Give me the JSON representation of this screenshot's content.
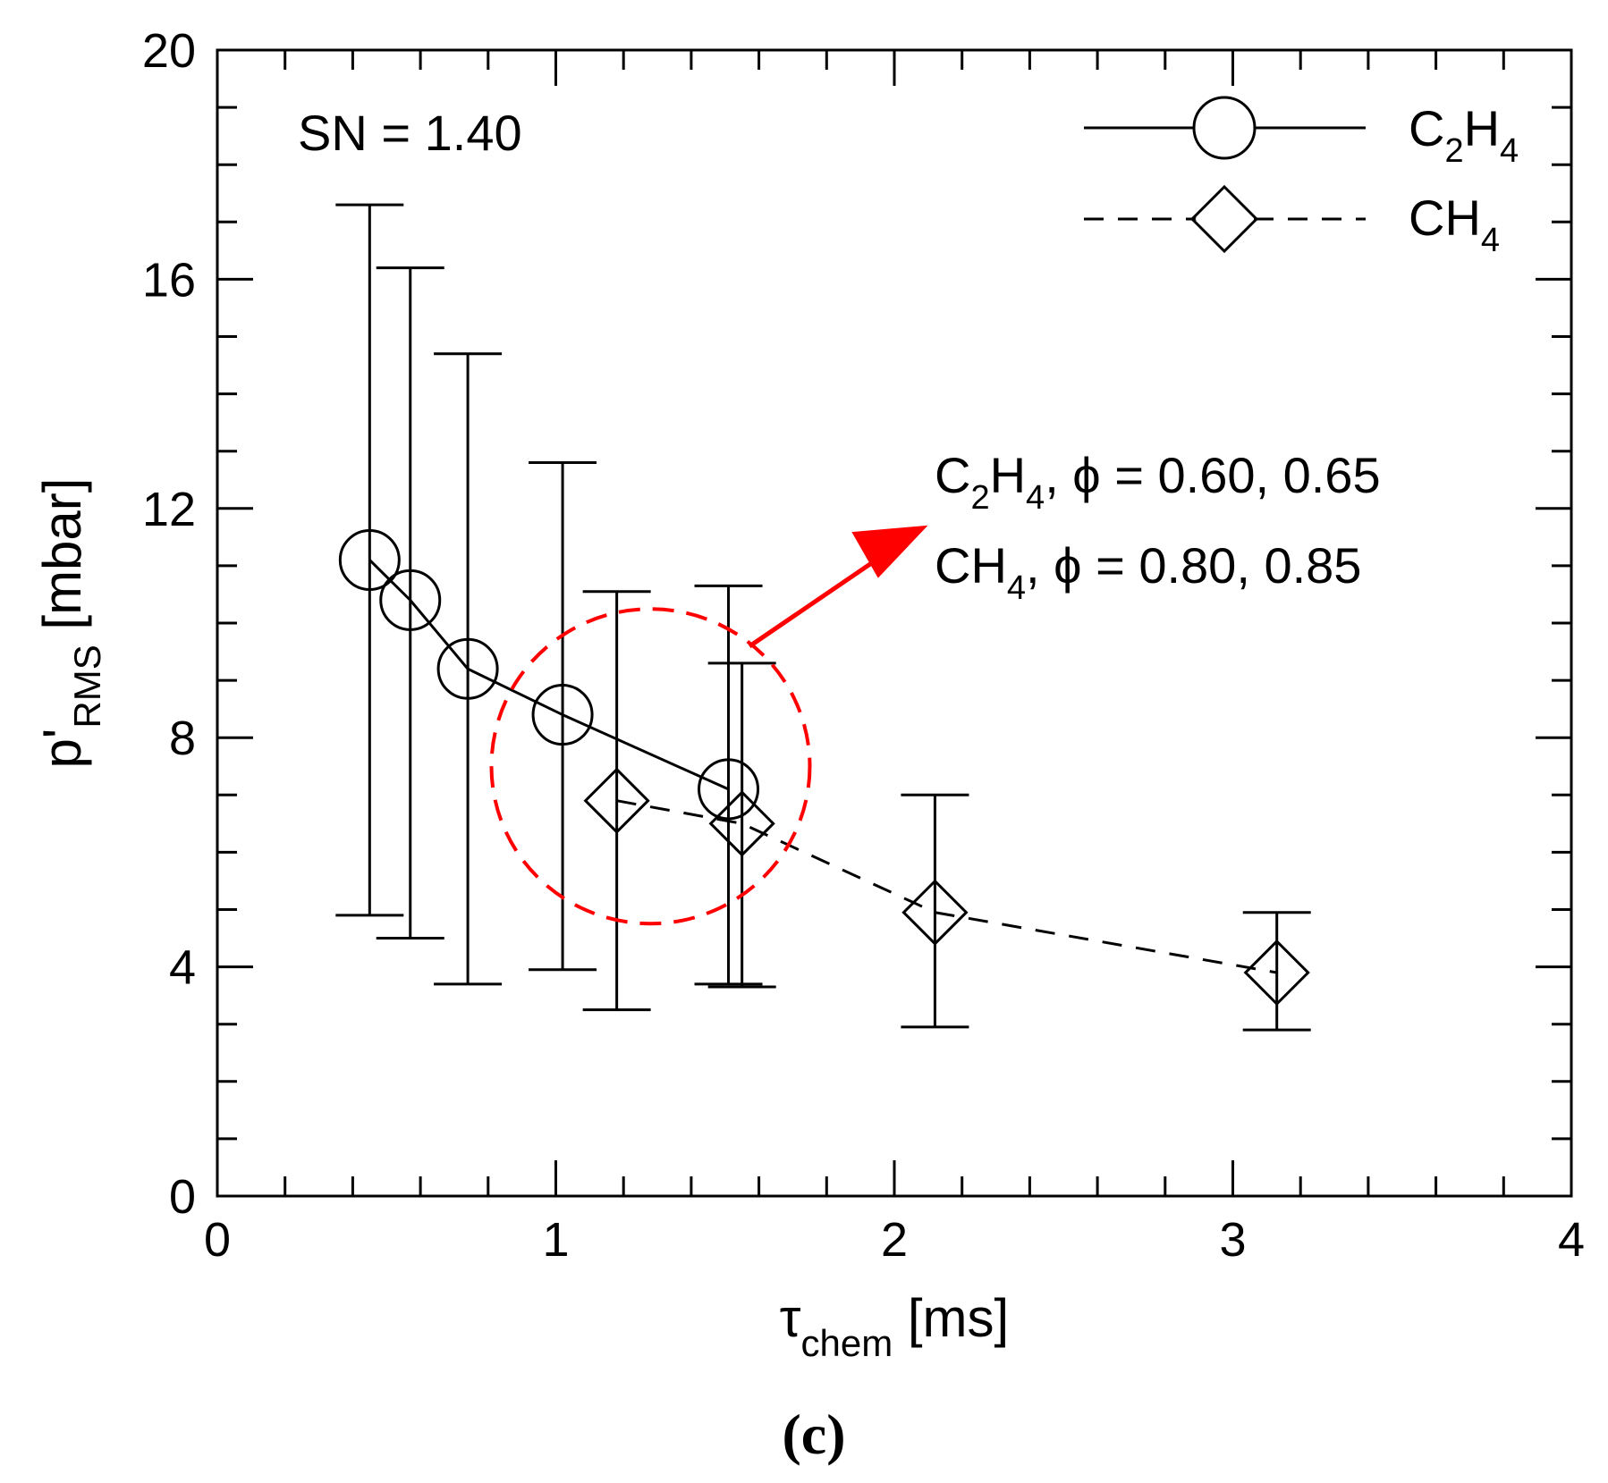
{
  "chart_data": {
    "type": "scatter",
    "panel_label": "(c)",
    "annotation": "SN = 1.40",
    "xlabel": {
      "main": "τ",
      "sub": "chem",
      "unit": " [ms]"
    },
    "ylabel": {
      "main": "p'",
      "sub": "RMS",
      "unit": " [mbar]"
    },
    "xlim": [
      0,
      4
    ],
    "ylim": [
      0,
      20
    ],
    "xticks": [
      0,
      1,
      2,
      3,
      4
    ],
    "yticks": [
      0,
      4,
      8,
      12,
      16,
      20
    ],
    "series": [
      {
        "name": "C2H4",
        "label_parts": [
          "C",
          "2",
          "H",
          "4"
        ],
        "marker": "circle",
        "line": "solid",
        "points": [
          {
            "x": 0.45,
            "y": 11.1,
            "ylow": 4.9,
            "yhigh": 17.3
          },
          {
            "x": 0.57,
            "y": 10.4,
            "ylow": 4.5,
            "yhigh": 16.2
          },
          {
            "x": 0.74,
            "y": 9.2,
            "ylow": 3.7,
            "yhigh": 14.7
          },
          {
            "x": 1.02,
            "y": 8.4,
            "ylow": 3.95,
            "yhigh": 12.8
          },
          {
            "x": 1.51,
            "y": 7.1,
            "ylow": 3.7,
            "yhigh": 10.65
          }
        ]
      },
      {
        "name": "CH4",
        "label_parts": [
          "CH",
          "4"
        ],
        "marker": "diamond",
        "line": "dashed",
        "points": [
          {
            "x": 1.18,
            "y": 6.9,
            "ylow": 3.25,
            "yhigh": 10.55
          },
          {
            "x": 1.55,
            "y": 6.5,
            "ylow": 3.65,
            "yhigh": 9.3
          },
          {
            "x": 2.12,
            "y": 4.95,
            "ylow": 2.95,
            "yhigh": 7.0
          },
          {
            "x": 3.13,
            "y": 3.9,
            "ylow": 2.9,
            "yhigh": 4.95
          }
        ]
      }
    ],
    "highlight": {
      "center_x": 1.28,
      "center_y": 7.5,
      "lines": [
        {
          "s1": "C",
          "sub1": "2",
          "s2": "H",
          "sub2": "4",
          "rest": ", ϕ = 0.60, 0.65"
        },
        {
          "s1": "CH",
          "sub1": "4",
          "rest": ", ϕ = 0.80, 0.85"
        }
      ]
    },
    "colors": {
      "axis": "#000000",
      "highlight": "#ff0000"
    }
  }
}
